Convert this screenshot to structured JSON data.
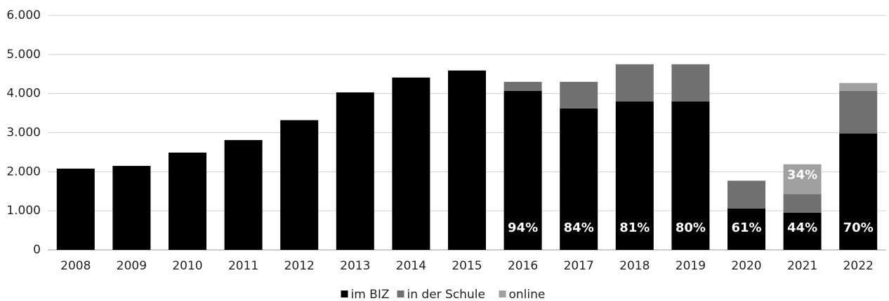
{
  "chart_data": {
    "type": "stacked-bar",
    "categories": [
      "2008",
      "2009",
      "2010",
      "2011",
      "2012",
      "2013",
      "2014",
      "2015",
      "2016",
      "2017",
      "2018",
      "2019",
      "2020",
      "2021",
      "2022"
    ],
    "series": [
      {
        "name": "im BIZ",
        "color": "#000000",
        "values": [
          2080,
          2150,
          2490,
          2810,
          3320,
          4030,
          4410,
          4590,
          4070,
          3620,
          3800,
          3800,
          1060,
          950,
          2980
        ],
        "share_values": [
          null,
          null,
          null,
          null,
          null,
          null,
          null,
          null,
          94,
          84,
          81,
          80,
          61,
          44,
          70
        ],
        "share_labels": [
          null,
          null,
          null,
          null,
          null,
          null,
          null,
          null,
          "94%",
          "84%",
          "81%",
          "80%",
          "61%",
          "44%",
          "70%"
        ]
      },
      {
        "name": "in der Schule",
        "color": "#707070",
        "values": [
          0,
          0,
          0,
          0,
          0,
          0,
          0,
          0,
          230,
          680,
          950,
          950,
          710,
          480,
          1090
        ]
      },
      {
        "name": "online",
        "color": "#a0a0a0",
        "values": [
          0,
          0,
          0,
          0,
          0,
          0,
          0,
          0,
          0,
          0,
          0,
          0,
          0,
          760,
          200
        ],
        "share_values": [
          null,
          null,
          null,
          null,
          null,
          null,
          null,
          null,
          null,
          null,
          null,
          null,
          null,
          34,
          null
        ],
        "share_labels": [
          null,
          null,
          null,
          null,
          null,
          null,
          null,
          null,
          null,
          null,
          null,
          null,
          null,
          "34%",
          null
        ]
      }
    ],
    "ylim": [
      0,
      6000
    ],
    "yticks": [
      0,
      {
        "value": 1000,
        "label": "1.000"
      },
      {
        "value": 2000,
        "label": "2.000"
      },
      {
        "value": 3000,
        "label": "3.000"
      },
      {
        "value": 4000,
        "label": "4.000"
      },
      {
        "value": 5000,
        "label": "5.000"
      },
      {
        "value": 6000,
        "label": "6.000"
      }
    ],
    "grid": true,
    "legend": "bottom"
  }
}
